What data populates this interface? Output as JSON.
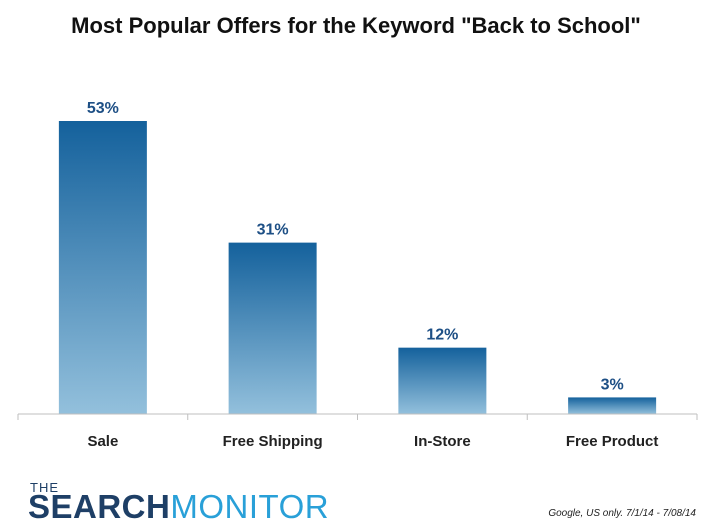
{
  "colors": {
    "bar_top": "#14619c",
    "bar_bottom": "#93c0dc",
    "value_label": "#1d4f85",
    "axis": "#bfbfbf",
    "logo_dark": "#1e3f66",
    "logo_accent": "#29a0d8"
  },
  "chart_data": {
    "type": "bar",
    "title": "Most Popular Offers for the Keyword \"Back to School\"",
    "categories": [
      "Sale",
      "Free Shipping",
      "In-Store",
      "Free Product"
    ],
    "values": [
      53,
      31,
      12,
      3
    ],
    "value_labels": [
      "53%",
      "31%",
      "12%",
      "3%"
    ],
    "ylim": [
      0,
      53
    ],
    "grid": false,
    "legend": "none"
  },
  "logo": {
    "line1": "THE",
    "line2_part1": "SEARCH",
    "line2_part2": "MONITOR"
  },
  "source_note": "Google, US only. 7/1/14 - 7/08/14"
}
